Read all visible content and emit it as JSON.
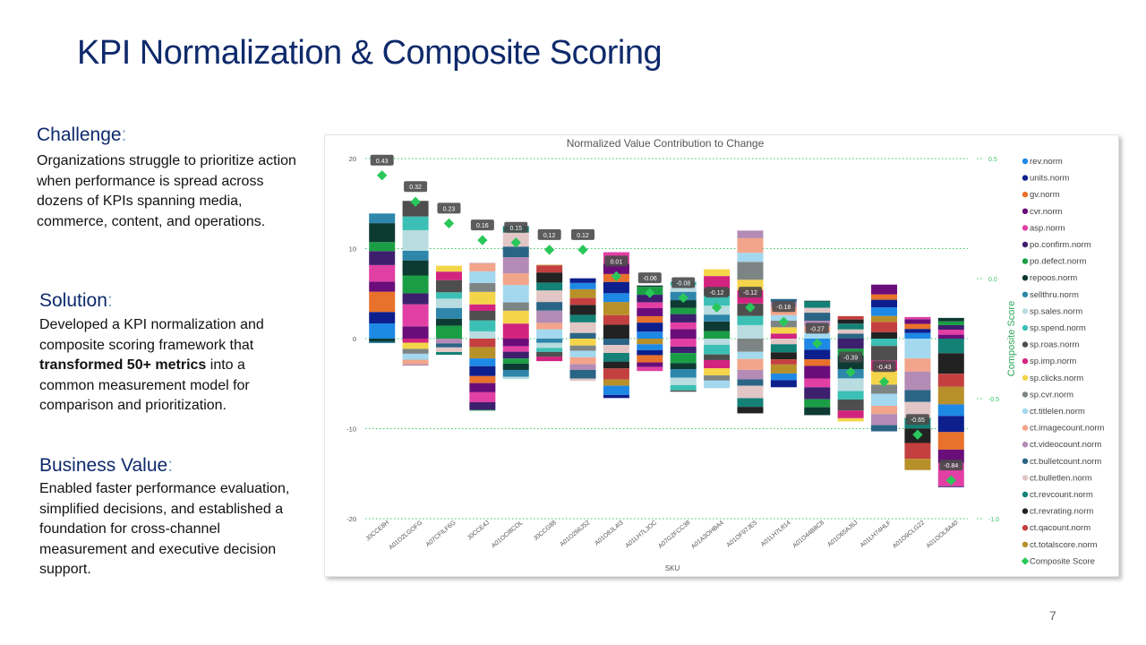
{
  "slide": {
    "title": "KPI Normalization & Composite Scoring",
    "page_number": "7",
    "challenge": {
      "heading": "Challenge",
      "body": "Organizations struggle to prioritize action when performance is spread across dozens of KPIs spanning media, commerce, content, and operations."
    },
    "solution": {
      "heading": "Solution",
      "body_before": "Developed a KPI normalization and composite scoring framework that ",
      "body_bold": "transformed 50+ metrics",
      "body_after": " into a common measurement model for comparison and prioritization."
    },
    "value": {
      "heading": "Business Value",
      "body": "Enabled faster performance evaluation, simplified decisions, and established a foundation for cross-channel measurement and executive decision support."
    }
  },
  "chart_data": {
    "type": "bar",
    "stacked": true,
    "title": "Normalized Value Contribution to Change",
    "xlabel": "SKU",
    "ylabel_right": "Composite Score",
    "ylim": [
      -20,
      20
    ],
    "yticks": [
      20,
      10,
      0,
      -10,
      -20
    ],
    "y2lim": [
      -1.0,
      0.5
    ],
    "y2ticks": [
      "0.5",
      "0.0",
      "-0.5",
      "-1.0"
    ],
    "gridlines": true,
    "legend_position": "right",
    "categories": [
      "J0CCE8H",
      "A01O2LGOFG",
      "A07CFILF6G",
      "J0CCE4J",
      "A01OCI8COL",
      "J0CCG88",
      "A01O266J52",
      "A01O8JL4I3",
      "A01LH7LJOC",
      "A07G2FCC38",
      "A01A3OHBA4",
      "A01OF97JE5",
      "A01LH7L814",
      "A01O44B8C8",
      "A01O65AJ6J",
      "A01LH74HLF",
      "A01O9CLG22",
      "A01OOL8A40"
    ],
    "positive_totals": [
      13.9,
      15.3,
      8.1,
      8.4,
      12.5,
      8.2,
      6.7,
      9.6,
      5.9,
      6.3,
      7.7,
      12.0,
      4.4,
      4.2,
      2.5,
      6.0,
      2.4,
      2.3
    ],
    "negative_totals": [
      -0.5,
      -3.0,
      -1.8,
      -8.0,
      -4.5,
      -2.5,
      -4.7,
      -6.6,
      -3.6,
      -5.9,
      -5.5,
      -8.3,
      -5.4,
      -8.5,
      -9.2,
      -10.3,
      -14.6,
      -16.5
    ],
    "composite_score": [
      0.43,
      0.32,
      0.23,
      0.16,
      0.15,
      0.12,
      0.12,
      0.01,
      -0.06,
      -0.08,
      -0.12,
      -0.12,
      -0.18,
      -0.27,
      -0.39,
      -0.43,
      -0.65,
      -0.84
    ],
    "composite_labels": [
      "0.43",
      "0.32",
      "0.23",
      "0.16",
      "0.15",
      "0.12",
      "0.12",
      "0.01",
      "-0.06",
      "-0.08",
      "-0.12",
      "-0.12",
      "-0.18",
      "-0.27",
      "-0.39",
      "-0.43",
      "-0.65",
      "-0.84"
    ],
    "series": [
      {
        "name": "rev.norm",
        "color": "#1e88e5"
      },
      {
        "name": "units.norm",
        "color": "#0d1f8c"
      },
      {
        "name": "gv.norm",
        "color": "#e8712b"
      },
      {
        "name": "cvr.norm",
        "color": "#6a0d7a"
      },
      {
        "name": "asp.norm",
        "color": "#e23fa4"
      },
      {
        "name": "po.confirm.norm",
        "color": "#3d1f6e"
      },
      {
        "name": "po.defect.norm",
        "color": "#1a9e45"
      },
      {
        "name": "repoos.norm",
        "color": "#0d3b33"
      },
      {
        "name": "sellthru.norm",
        "color": "#2e86ab"
      },
      {
        "name": "sp.sales.norm",
        "color": "#b8dce0"
      },
      {
        "name": "sp.spend.norm",
        "color": "#3cc0b5"
      },
      {
        "name": "sp.roas.norm",
        "color": "#4e4e4e"
      },
      {
        "name": "sp.imp.norm",
        "color": "#d2247f"
      },
      {
        "name": "sp.clicks.norm",
        "color": "#f4d54a"
      },
      {
        "name": "sp.cvr.norm",
        "color": "#7d8584"
      },
      {
        "name": "ct.titlelen.norm",
        "color": "#a3d8ee"
      },
      {
        "name": "ct.imagecount.norm",
        "color": "#f2a58a"
      },
      {
        "name": "ct.videocount.norm",
        "color": "#b38bb5"
      },
      {
        "name": "ct.bulletcount.norm",
        "color": "#2b6585"
      },
      {
        "name": "ct.bulletlen.norm",
        "color": "#e2c6c6"
      },
      {
        "name": "ct.revcount.norm",
        "color": "#148177"
      },
      {
        "name": "ct.revrating.norm",
        "color": "#222222"
      },
      {
        "name": "ct.qacount.norm",
        "color": "#c44040"
      },
      {
        "name": "ct.totalscore.norm",
        "color": "#b8902a"
      },
      {
        "name": "Composite Score",
        "color": "#29c75a"
      }
    ]
  }
}
